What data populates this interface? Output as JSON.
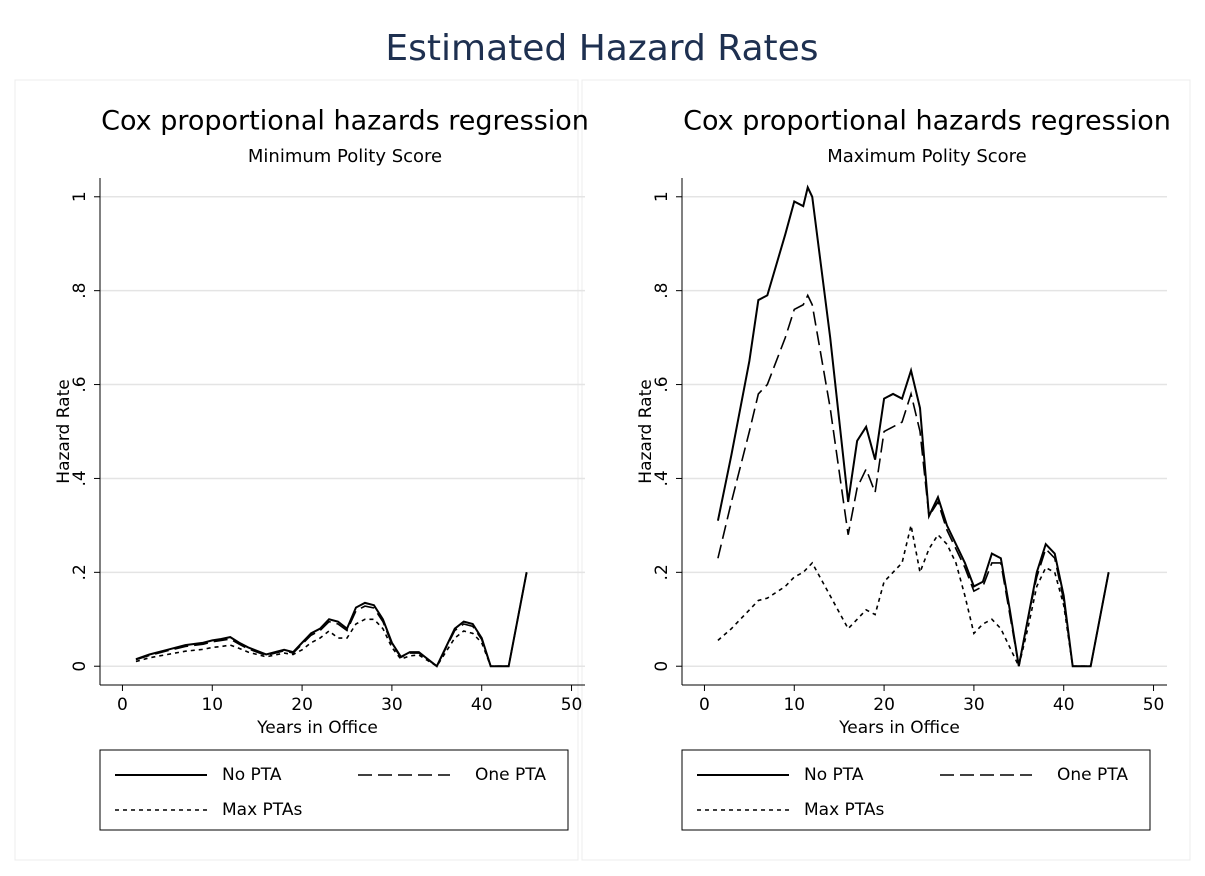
{
  "title": "Estimated Hazard Rates",
  "chart_data": [
    {
      "type": "line",
      "title": "Cox proportional hazards regression",
      "subtitle": "Minimum Polity Score",
      "xlabel": "Years in Office",
      "ylabel": "Hazard Rate",
      "xlim": [
        -2.5,
        51.5
      ],
      "xticks": [
        0,
        10,
        20,
        30,
        40,
        50
      ],
      "ylim": [
        -0.04,
        1.04
      ],
      "yticks": [
        0,
        {
          "value": 0.2,
          "label": ".2"
        },
        {
          "value": 0.4,
          "label": ".4"
        },
        {
          "value": 0.6,
          "label": ".6"
        },
        {
          "value": 0.8,
          "label": ".8"
        },
        1
      ],
      "grid": true,
      "x": [
        1.5,
        3,
        5,
        7,
        9,
        10,
        11,
        12,
        13,
        14,
        16,
        17,
        18,
        19,
        20,
        21,
        22,
        23,
        24,
        25,
        26,
        27,
        28,
        29,
        30,
        31,
        32,
        33,
        34,
        35,
        36,
        37,
        38,
        39,
        40,
        41,
        42,
        43,
        44,
        45
      ],
      "series": [
        {
          "name": "No PTA",
          "color": "#000000",
          "dash": "solid",
          "values": [
            0.015,
            0.025,
            0.035,
            0.045,
            0.05,
            0.055,
            0.058,
            0.062,
            0.05,
            0.04,
            0.025,
            0.03,
            0.035,
            0.03,
            0.05,
            0.07,
            0.08,
            0.1,
            0.095,
            0.08,
            0.125,
            0.135,
            0.13,
            0.1,
            0.05,
            0.02,
            0.03,
            0.03,
            0.015,
            0.0,
            0.04,
            0.08,
            0.095,
            0.09,
            0.06,
            0.0,
            0.0,
            0.0,
            0.1,
            0.2
          ]
        },
        {
          "name": "One PTA",
          "color": "#000000",
          "dash": "dash",
          "values": [
            0.014,
            0.023,
            0.033,
            0.042,
            0.047,
            0.052,
            0.055,
            0.058,
            0.047,
            0.037,
            0.023,
            0.028,
            0.033,
            0.028,
            0.047,
            0.066,
            0.076,
            0.095,
            0.09,
            0.076,
            0.118,
            0.128,
            0.124,
            0.095,
            0.047,
            0.019,
            0.028,
            0.028,
            0.014,
            0.0,
            0.038,
            0.076,
            0.09,
            0.085,
            0.057,
            0.0,
            0.0,
            0.0,
            0.1,
            0.2
          ]
        },
        {
          "name": "Max PTAs",
          "color": "#000000",
          "dash": "dot",
          "values": [
            0.01,
            0.018,
            0.025,
            0.032,
            0.036,
            0.04,
            0.042,
            0.045,
            0.038,
            0.03,
            0.02,
            0.024,
            0.028,
            0.025,
            0.035,
            0.05,
            0.06,
            0.075,
            0.06,
            0.06,
            0.09,
            0.1,
            0.1,
            0.08,
            0.04,
            0.015,
            0.022,
            0.024,
            0.012,
            0.0,
            0.03,
            0.06,
            0.075,
            0.07,
            0.05,
            0.0,
            0.0,
            0.0,
            0.1,
            0.2
          ]
        }
      ]
    },
    {
      "type": "line",
      "title": "Cox proportional hazards regression",
      "subtitle": "Maximum Polity Score",
      "xlabel": "Years in Office",
      "ylabel": "Hazard Rate",
      "xlim": [
        -2.5,
        51.5
      ],
      "xticks": [
        0,
        10,
        20,
        30,
        40,
        50
      ],
      "ylim": [
        -0.04,
        1.04
      ],
      "yticks": [
        0,
        {
          "value": 0.2,
          "label": ".2"
        },
        {
          "value": 0.4,
          "label": ".4"
        },
        {
          "value": 0.6,
          "label": ".6"
        },
        {
          "value": 0.8,
          "label": ".8"
        },
        1
      ],
      "grid": true,
      "x": [
        1.5,
        3,
        5,
        6,
        7,
        9,
        10,
        11,
        11.5,
        12,
        14,
        16,
        17,
        18,
        19,
        20,
        21,
        22,
        23,
        24,
        25,
        26,
        27,
        28,
        29,
        30,
        31,
        32,
        33,
        34,
        35,
        36,
        37,
        38,
        39,
        40,
        41,
        42,
        43,
        44,
        45
      ],
      "series": [
        {
          "name": "No PTA",
          "color": "#000000",
          "dash": "solid",
          "values": [
            0.31,
            0.45,
            0.65,
            0.78,
            0.79,
            0.92,
            0.99,
            0.98,
            1.02,
            1.0,
            0.7,
            0.35,
            0.48,
            0.51,
            0.44,
            0.57,
            0.58,
            0.57,
            0.63,
            0.55,
            0.32,
            0.36,
            0.3,
            0.26,
            0.22,
            0.17,
            0.18,
            0.24,
            0.23,
            0.12,
            0.0,
            0.1,
            0.2,
            0.26,
            0.24,
            0.15,
            0.0,
            0.0,
            0.0,
            0.1,
            0.2
          ]
        },
        {
          "name": "One PTA",
          "color": "#000000",
          "dash": "dash",
          "values": [
            0.23,
            0.35,
            0.5,
            0.58,
            0.6,
            0.7,
            0.76,
            0.77,
            0.79,
            0.77,
            0.55,
            0.28,
            0.38,
            0.42,
            0.37,
            0.5,
            0.51,
            0.52,
            0.58,
            0.5,
            0.32,
            0.35,
            0.29,
            0.25,
            0.21,
            0.16,
            0.17,
            0.22,
            0.22,
            0.11,
            0.0,
            0.1,
            0.19,
            0.25,
            0.23,
            0.14,
            0.0,
            0.0,
            0.0,
            0.1,
            0.2
          ]
        },
        {
          "name": "Max PTAs",
          "color": "#000000",
          "dash": "dot",
          "values": [
            0.055,
            0.08,
            0.12,
            0.14,
            0.145,
            0.17,
            0.19,
            0.2,
            0.21,
            0.22,
            0.15,
            0.08,
            0.1,
            0.12,
            0.11,
            0.18,
            0.2,
            0.22,
            0.3,
            0.2,
            0.25,
            0.28,
            0.26,
            0.22,
            0.15,
            0.07,
            0.09,
            0.1,
            0.08,
            0.04,
            0.0,
            0.08,
            0.17,
            0.21,
            0.2,
            0.13,
            0.0,
            0.0,
            0.0,
            0.1,
            0.2
          ]
        }
      ]
    }
  ]
}
